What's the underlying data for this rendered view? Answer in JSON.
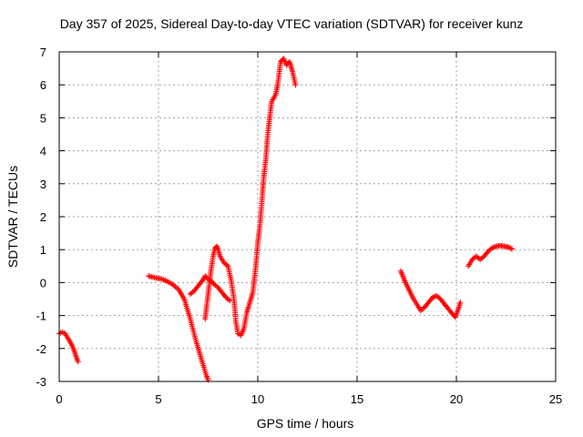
{
  "chart_data": {
    "type": "scatter",
    "title": "Day 357 of 2025, Sidereal Day-to-day VTEC variation (SDTVAR) for receiver kunz",
    "xlabel": "GPS time / hours",
    "ylabel": "SDTVAR / TECUs",
    "xlim": [
      0,
      25
    ],
    "ylim": [
      -3,
      7
    ],
    "xticks": [
      0,
      5,
      10,
      15,
      20,
      25
    ],
    "yticks": [
      -3,
      -2,
      -1,
      0,
      1,
      2,
      3,
      4,
      5,
      6,
      7
    ],
    "grid": true,
    "marker": "plus",
    "color": "#ff0000",
    "segments": [
      [
        [
          0.0,
          -1.55
        ],
        [
          0.15,
          -1.5
        ],
        [
          0.3,
          -1.55
        ],
        [
          0.45,
          -1.7
        ],
        [
          0.6,
          -1.85
        ],
        [
          0.75,
          -2.05
        ],
        [
          0.85,
          -2.25
        ],
        [
          0.95,
          -2.4
        ]
      ],
      [
        [
          4.5,
          0.2
        ],
        [
          4.8,
          0.15
        ],
        [
          5.1,
          0.12
        ],
        [
          5.4,
          0.05
        ],
        [
          5.7,
          -0.05
        ],
        [
          6.0,
          -0.2
        ],
        [
          6.3,
          -0.5
        ],
        [
          6.6,
          -1.1
        ],
        [
          6.9,
          -1.8
        ],
        [
          7.2,
          -2.4
        ],
        [
          7.4,
          -2.8
        ],
        [
          7.5,
          -2.95
        ]
      ],
      [
        [
          6.6,
          -0.35
        ],
        [
          6.8,
          -0.25
        ],
        [
          7.0,
          -0.1
        ],
        [
          7.2,
          0.05
        ],
        [
          7.35,
          0.2
        ],
        [
          7.5,
          0.1
        ],
        [
          7.65,
          0.05
        ],
        [
          7.8,
          -0.05
        ],
        [
          8.0,
          -0.15
        ],
        [
          8.2,
          -0.3
        ],
        [
          8.4,
          -0.45
        ],
        [
          8.6,
          -0.55
        ]
      ],
      [
        [
          7.35,
          -1.1
        ],
        [
          7.45,
          -0.6
        ],
        [
          7.55,
          -0.1
        ],
        [
          7.65,
          0.4
        ],
        [
          7.75,
          0.8
        ],
        [
          7.85,
          1.05
        ],
        [
          7.95,
          1.1
        ],
        [
          8.1,
          0.8
        ],
        [
          8.3,
          0.6
        ],
        [
          8.5,
          0.5
        ],
        [
          8.65,
          0.1
        ],
        [
          8.8,
          -0.5
        ],
        [
          8.9,
          -1.2
        ],
        [
          9.0,
          -1.55
        ],
        [
          9.15,
          -1.6
        ],
        [
          9.3,
          -1.4
        ],
        [
          9.45,
          -0.9
        ],
        [
          9.6,
          -0.6
        ],
        [
          9.75,
          -0.3
        ],
        [
          9.9,
          0.5
        ],
        [
          10.0,
          1.2
        ],
        [
          10.1,
          1.7
        ],
        [
          10.2,
          2.4
        ],
        [
          10.3,
          3.2
        ],
        [
          10.4,
          3.7
        ],
        [
          10.5,
          4.5
        ],
        [
          10.6,
          5.0
        ],
        [
          10.7,
          5.5
        ],
        [
          10.9,
          5.7
        ],
        [
          11.0,
          6.0
        ],
        [
          11.15,
          6.7
        ],
        [
          11.3,
          6.8
        ],
        [
          11.45,
          6.6
        ],
        [
          11.6,
          6.7
        ],
        [
          11.75,
          6.4
        ],
        [
          11.9,
          6.0
        ]
      ],
      [
        [
          17.2,
          0.35
        ],
        [
          17.4,
          0.05
        ],
        [
          17.6,
          -0.2
        ],
        [
          17.8,
          -0.45
        ],
        [
          18.0,
          -0.65
        ],
        [
          18.2,
          -0.85
        ],
        [
          18.4,
          -0.75
        ],
        [
          18.6,
          -0.6
        ],
        [
          18.8,
          -0.45
        ],
        [
          19.0,
          -0.4
        ],
        [
          19.2,
          -0.5
        ],
        [
          19.4,
          -0.65
        ],
        [
          19.6,
          -0.8
        ],
        [
          19.8,
          -0.95
        ],
        [
          19.95,
          -1.05
        ],
        [
          20.1,
          -0.8
        ],
        [
          20.2,
          -0.6
        ]
      ],
      [
        [
          20.6,
          0.5
        ],
        [
          20.8,
          0.7
        ],
        [
          21.0,
          0.8
        ],
        [
          21.2,
          0.7
        ],
        [
          21.4,
          0.8
        ],
        [
          21.6,
          0.95
        ],
        [
          21.8,
          1.05
        ],
        [
          22.0,
          1.1
        ],
        [
          22.2,
          1.12
        ],
        [
          22.4,
          1.1
        ],
        [
          22.6,
          1.08
        ],
        [
          22.8,
          1.02
        ]
      ]
    ]
  }
}
